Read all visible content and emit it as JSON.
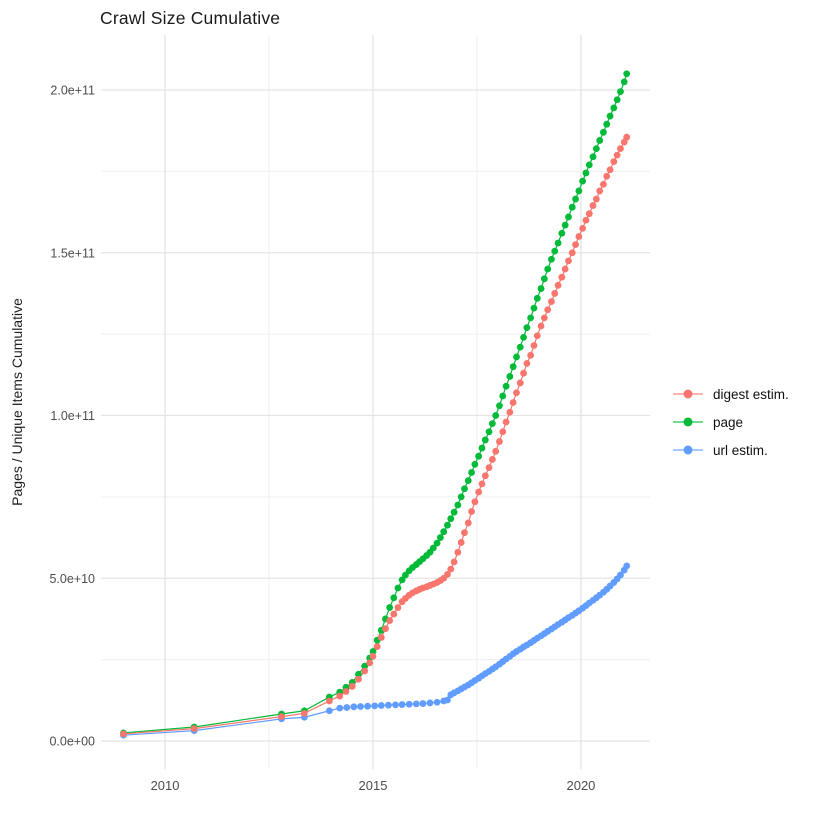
{
  "chart_data": {
    "type": "line",
    "title": "Crawl Size Cumulative",
    "xlabel": "",
    "ylabel": "Pages / Unique Items Cumulative",
    "value_unit": "billions (1e9 pages / items)",
    "grid": true,
    "background_color": "#FFFFFF",
    "gridline_color": "#E4E4E4",
    "minor_gridline_color": "#EFEFEF",
    "axis_text_color": "#4D4D4D",
    "legend_position": "right",
    "x_axis": {
      "range": [
        2008.46,
        2021.66
      ],
      "tick_values": [
        2010,
        2015,
        2020
      ],
      "tick_labels": [
        "2010",
        "2015",
        "2020"
      ],
      "minor_tick_values": [
        2012.5,
        2017.5
      ]
    },
    "y_axis": {
      "range": [
        -8.6,
        216.9
      ],
      "tick_values": [
        0,
        50,
        100,
        150,
        200
      ],
      "tick_labels": [
        "0.0e+00",
        "5.0e+10",
        "1.0e+11",
        "1.5e+11",
        "2.0e+11"
      ],
      "minor_tick_values": [
        25,
        75,
        125,
        175
      ]
    },
    "series": [
      {
        "name": "digest estim.",
        "color": "#F8766D",
        "points": [
          [
            2009.0,
            2.2
          ],
          [
            2010.7,
            3.8
          ],
          [
            2012.8,
            7.5
          ],
          [
            2013.35,
            8.5
          ],
          [
            2013.95,
            12.3
          ],
          [
            2014.2,
            13.8
          ],
          [
            2014.35,
            15.2
          ],
          [
            2014.5,
            16.8
          ],
          [
            2014.65,
            19
          ],
          [
            2014.8,
            21.5
          ],
          [
            2014.92,
            24
          ],
          [
            2015.0,
            26
          ],
          [
            2015.1,
            29
          ],
          [
            2015.2,
            31.8
          ],
          [
            2015.3,
            34.5
          ],
          [
            2015.4,
            37
          ],
          [
            2015.5,
            39
          ],
          [
            2015.6,
            41
          ],
          [
            2015.7,
            42.8
          ],
          [
            2015.78,
            43.8
          ],
          [
            2015.87,
            44.8
          ],
          [
            2015.95,
            45.5
          ],
          [
            2016.04,
            46.1
          ],
          [
            2016.12,
            46.6
          ],
          [
            2016.2,
            47
          ],
          [
            2016.29,
            47.4
          ],
          [
            2016.37,
            47.8
          ],
          [
            2016.45,
            48.2
          ],
          [
            2016.54,
            48.7
          ],
          [
            2016.62,
            49.3
          ],
          [
            2016.7,
            50
          ],
          [
            2016.79,
            51.2
          ],
          [
            2016.87,
            52.8
          ],
          [
            2016.95,
            55
          ],
          [
            2017.04,
            58
          ],
          [
            2017.12,
            61
          ],
          [
            2017.2,
            64
          ],
          [
            2017.29,
            67
          ],
          [
            2017.37,
            70.5
          ],
          [
            2017.45,
            73.5
          ],
          [
            2017.54,
            76.5
          ],
          [
            2017.62,
            79
          ],
          [
            2017.7,
            81.5
          ],
          [
            2017.79,
            84
          ],
          [
            2017.87,
            86.5
          ],
          [
            2017.95,
            89
          ],
          [
            2018.04,
            92
          ],
          [
            2018.12,
            95
          ],
          [
            2018.2,
            98
          ],
          [
            2018.29,
            101
          ],
          [
            2018.37,
            104
          ],
          [
            2018.45,
            107
          ],
          [
            2018.54,
            110
          ],
          [
            2018.62,
            113
          ],
          [
            2018.7,
            116
          ],
          [
            2018.79,
            118.5
          ],
          [
            2018.87,
            121.5
          ],
          [
            2018.95,
            124.5
          ],
          [
            2019.04,
            127.5
          ],
          [
            2019.12,
            130
          ],
          [
            2019.2,
            132.5
          ],
          [
            2019.29,
            135
          ],
          [
            2019.37,
            137.5
          ],
          [
            2019.45,
            140
          ],
          [
            2019.54,
            142.5
          ],
          [
            2019.62,
            145
          ],
          [
            2019.7,
            147.5
          ],
          [
            2019.79,
            150
          ],
          [
            2019.87,
            152.5
          ],
          [
            2019.95,
            155
          ],
          [
            2020.04,
            157.5
          ],
          [
            2020.12,
            160
          ],
          [
            2020.2,
            162
          ],
          [
            2020.29,
            164.5
          ],
          [
            2020.37,
            166.5
          ],
          [
            2020.45,
            169
          ],
          [
            2020.54,
            171
          ],
          [
            2020.62,
            173.5
          ],
          [
            2020.7,
            175.5
          ],
          [
            2020.79,
            178
          ],
          [
            2020.87,
            180
          ],
          [
            2020.95,
            182
          ],
          [
            2021.04,
            184
          ],
          [
            2021.1,
            185.5
          ]
        ]
      },
      {
        "name": "page",
        "color": "#00BA38",
        "points": [
          [
            2009.0,
            2.5
          ],
          [
            2010.7,
            4.3
          ],
          [
            2012.8,
            8.3
          ],
          [
            2013.35,
            9.3
          ],
          [
            2013.95,
            13.5
          ],
          [
            2014.2,
            15
          ],
          [
            2014.35,
            16.5
          ],
          [
            2014.5,
            18
          ],
          [
            2014.65,
            20.5
          ],
          [
            2014.8,
            23
          ],
          [
            2014.92,
            25.5
          ],
          [
            2015.0,
            27.5
          ],
          [
            2015.1,
            31
          ],
          [
            2015.2,
            34
          ],
          [
            2015.3,
            37.5
          ],
          [
            2015.4,
            41
          ],
          [
            2015.5,
            44
          ],
          [
            2015.6,
            47
          ],
          [
            2015.7,
            49.5
          ],
          [
            2015.78,
            51
          ],
          [
            2015.87,
            52.3
          ],
          [
            2015.95,
            53.3
          ],
          [
            2016.04,
            54.2
          ],
          [
            2016.12,
            55.1
          ],
          [
            2016.2,
            56
          ],
          [
            2016.29,
            57
          ],
          [
            2016.37,
            58
          ],
          [
            2016.45,
            59.3
          ],
          [
            2016.54,
            60.8
          ],
          [
            2016.62,
            62.5
          ],
          [
            2016.7,
            64.3
          ],
          [
            2016.79,
            66.3
          ],
          [
            2016.87,
            68.3
          ],
          [
            2016.95,
            70.3
          ],
          [
            2017.04,
            72.5
          ],
          [
            2017.12,
            75
          ],
          [
            2017.2,
            77.5
          ],
          [
            2017.29,
            80
          ],
          [
            2017.37,
            82.5
          ],
          [
            2017.45,
            85
          ],
          [
            2017.54,
            87.5
          ],
          [
            2017.62,
            90
          ],
          [
            2017.7,
            92.5
          ],
          [
            2017.79,
            95
          ],
          [
            2017.87,
            97.5
          ],
          [
            2017.95,
            100
          ],
          [
            2018.04,
            103
          ],
          [
            2018.12,
            106
          ],
          [
            2018.2,
            109
          ],
          [
            2018.29,
            112
          ],
          [
            2018.37,
            115
          ],
          [
            2018.45,
            118
          ],
          [
            2018.54,
            121
          ],
          [
            2018.62,
            124
          ],
          [
            2018.7,
            127
          ],
          [
            2018.79,
            130
          ],
          [
            2018.87,
            133
          ],
          [
            2018.95,
            136
          ],
          [
            2019.04,
            139
          ],
          [
            2019.12,
            142
          ],
          [
            2019.2,
            145
          ],
          [
            2019.29,
            148
          ],
          [
            2019.37,
            150.5
          ],
          [
            2019.45,
            153
          ],
          [
            2019.54,
            156
          ],
          [
            2019.62,
            158.5
          ],
          [
            2019.7,
            161
          ],
          [
            2019.79,
            164
          ],
          [
            2019.87,
            166.5
          ],
          [
            2019.95,
            169
          ],
          [
            2020.04,
            172
          ],
          [
            2020.12,
            174.5
          ],
          [
            2020.2,
            177
          ],
          [
            2020.29,
            179.5
          ],
          [
            2020.37,
            182
          ],
          [
            2020.45,
            184.5
          ],
          [
            2020.54,
            187
          ],
          [
            2020.62,
            189.5
          ],
          [
            2020.7,
            192
          ],
          [
            2020.79,
            194.5
          ],
          [
            2020.87,
            197
          ],
          [
            2020.95,
            199.5
          ],
          [
            2021.04,
            202.5
          ],
          [
            2021.1,
            205
          ]
        ]
      },
      {
        "name": "url estim.",
        "color": "#619CFF",
        "points": [
          [
            2009.0,
            1.8
          ],
          [
            2010.7,
            3.2
          ],
          [
            2012.8,
            6.8
          ],
          [
            2013.35,
            7.3
          ],
          [
            2013.95,
            9.3
          ],
          [
            2014.2,
            10.1
          ],
          [
            2014.37,
            10.3
          ],
          [
            2014.54,
            10.5
          ],
          [
            2014.7,
            10.6
          ],
          [
            2014.87,
            10.7
          ],
          [
            2015.04,
            10.8
          ],
          [
            2015.2,
            10.9
          ],
          [
            2015.37,
            11.0
          ],
          [
            2015.54,
            11.1
          ],
          [
            2015.7,
            11.2
          ],
          [
            2015.87,
            11.3
          ],
          [
            2016.04,
            11.4
          ],
          [
            2016.2,
            11.5
          ],
          [
            2016.37,
            11.7
          ],
          [
            2016.54,
            11.9
          ],
          [
            2016.7,
            12.3
          ],
          [
            2016.79,
            12.6
          ],
          [
            2016.87,
            14.2
          ],
          [
            2016.95,
            14.8
          ],
          [
            2017.04,
            15.4
          ],
          [
            2017.12,
            16
          ],
          [
            2017.2,
            16.6
          ],
          [
            2017.29,
            17.2
          ],
          [
            2017.37,
            17.9
          ],
          [
            2017.45,
            18.6
          ],
          [
            2017.54,
            19.3
          ],
          [
            2017.62,
            20
          ],
          [
            2017.7,
            20.7
          ],
          [
            2017.79,
            21.4
          ],
          [
            2017.87,
            22.1
          ],
          [
            2017.95,
            22.8
          ],
          [
            2018.04,
            23.6
          ],
          [
            2018.12,
            24.4
          ],
          [
            2018.2,
            25.2
          ],
          [
            2018.29,
            26
          ],
          [
            2018.37,
            26.8
          ],
          [
            2018.45,
            27.5
          ],
          [
            2018.54,
            28.2
          ],
          [
            2018.62,
            28.9
          ],
          [
            2018.7,
            29.5
          ],
          [
            2018.79,
            30.2
          ],
          [
            2018.87,
            30.9
          ],
          [
            2018.95,
            31.6
          ],
          [
            2019.04,
            32.3
          ],
          [
            2019.12,
            33
          ],
          [
            2019.2,
            33.7
          ],
          [
            2019.29,
            34.4
          ],
          [
            2019.37,
            35.1
          ],
          [
            2019.45,
            35.8
          ],
          [
            2019.54,
            36.5
          ],
          [
            2019.62,
            37.2
          ],
          [
            2019.7,
            37.9
          ],
          [
            2019.79,
            38.6
          ],
          [
            2019.87,
            39.3
          ],
          [
            2019.95,
            40
          ],
          [
            2020.04,
            40.8
          ],
          [
            2020.12,
            41.6
          ],
          [
            2020.2,
            42.4
          ],
          [
            2020.29,
            43.2
          ],
          [
            2020.37,
            44
          ],
          [
            2020.45,
            44.8
          ],
          [
            2020.54,
            45.7
          ],
          [
            2020.62,
            46.6
          ],
          [
            2020.7,
            47.6
          ],
          [
            2020.79,
            48.7
          ],
          [
            2020.87,
            49.8
          ],
          [
            2020.95,
            51
          ],
          [
            2021.04,
            52.5
          ],
          [
            2021.1,
            53.8
          ]
        ]
      }
    ]
  }
}
